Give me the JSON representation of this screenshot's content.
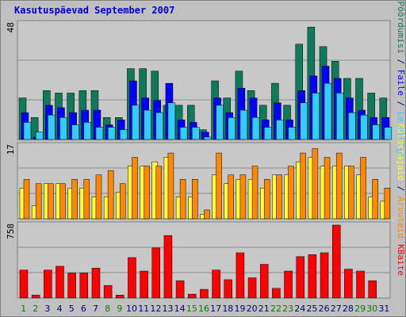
{
  "title": "Kasutuspäevad September 2007",
  "colors": {
    "background": "#c0c0c0",
    "pane": "#c8c8c8",
    "grid": "#8c8c8c",
    "visits": "#0e7a5a",
    "files": "#0000ff",
    "pages": "#33ccff",
    "hosts": "#ffff33",
    "visitors": "#ff8800",
    "kbytes": "#ff0000",
    "weekday_label": "#000080",
    "weekend_label": "#008000"
  },
  "chart_data": [
    {
      "type": "bar",
      "name": "hits-panel",
      "ymax_label": "48",
      "ylim": [
        0,
        48
      ],
      "categories": [
        "1",
        "2",
        "3",
        "4",
        "5",
        "6",
        "7",
        "8",
        "9",
        "10",
        "11",
        "12",
        "13",
        "14",
        "15",
        "16",
        "17",
        "18",
        "19",
        "20",
        "21",
        "22",
        "23",
        "24",
        "25",
        "26",
        "27",
        "28",
        "29",
        "30",
        "31"
      ],
      "weekend": [
        1,
        2,
        8,
        9,
        15,
        16,
        22,
        23,
        29,
        30
      ],
      "series": [
        {
          "name": "Pöördumisi",
          "color": "#0e7a5a",
          "values": [
            17,
            9,
            20,
            19,
            19,
            20,
            20,
            9,
            9,
            29,
            29,
            28,
            14,
            14,
            14,
            4,
            24,
            17,
            28,
            20,
            14,
            23,
            14,
            39,
            46,
            38,
            32,
            25,
            25,
            19,
            17
          ]
        },
        {
          "name": "Faile",
          "color": "#0000ff",
          "values": [
            11,
            1,
            14,
            13,
            11,
            12,
            12,
            6,
            8,
            24,
            17,
            16,
            23,
            8,
            7,
            3,
            17,
            11,
            21,
            17,
            8,
            15,
            8,
            20,
            26,
            30,
            25,
            17,
            12,
            9,
            9
          ]
        },
        {
          "name": "Lehekülgi",
          "color": "#33ccff",
          "values": [
            7,
            3,
            10,
            9,
            6,
            7,
            5,
            5,
            4,
            14,
            12,
            11,
            15,
            5,
            5,
            1,
            14,
            9,
            12,
            9,
            5,
            8,
            5,
            15,
            19,
            23,
            19,
            11,
            10,
            6,
            5
          ]
        }
      ]
    },
    {
      "type": "bar",
      "name": "visits-panel",
      "ymax_label": "17",
      "ylim": [
        0,
        17
      ],
      "series": [
        {
          "name": "Külastajaid",
          "color": "#ffff33",
          "values": [
            7,
            3,
            8,
            8,
            7,
            7,
            5,
            5,
            6,
            12,
            12,
            13,
            14,
            5,
            5,
            1,
            10,
            8,
            9,
            9,
            7,
            10,
            10,
            13,
            14,
            12,
            12,
            12,
            10,
            5,
            4
          ]
        },
        {
          "name": "Arvuteid",
          "color": "#ff8800",
          "values": [
            9,
            8,
            8,
            8,
            9,
            9,
            10,
            11,
            8,
            14,
            12,
            12,
            15,
            9,
            9,
            2,
            15,
            10,
            10,
            12,
            9,
            10,
            12,
            15,
            16,
            14,
            15,
            12,
            14,
            9,
            7
          ]
        }
      ]
    },
    {
      "type": "bar",
      "name": "kbytes-panel",
      "ymax_label": "758",
      "ylim": [
        0,
        758
      ],
      "series": [
        {
          "name": "KBaite",
          "color": "#ff0000",
          "values": [
            290,
            30,
            290,
            330,
            260,
            260,
            310,
            130,
            30,
            420,
            280,
            520,
            650,
            180,
            40,
            90,
            290,
            190,
            470,
            210,
            350,
            100,
            280,
            430,
            450,
            470,
            758,
            300,
            280,
            180,
            0
          ]
        }
      ]
    }
  ],
  "right_labels": {
    "top": [
      {
        "text": "Pöördumisi",
        "color": "#0e7a5a"
      },
      {
        "text": " / ",
        "color": "#000080"
      },
      {
        "text": "Faile",
        "color": "#0000ff"
      },
      {
        "text": " / ",
        "color": "#000080"
      },
      {
        "text": "Lehekülgi",
        "color": "#33ccff"
      }
    ],
    "middle": [
      {
        "text": "Külastajaid",
        "color": "#ffff33"
      },
      {
        "text": " / ",
        "color": "#000080"
      },
      {
        "text": "Arvuteid",
        "color": "#ff8800"
      }
    ],
    "bottom": [
      {
        "text": "KBaite",
        "color": "#ff0000"
      }
    ]
  }
}
